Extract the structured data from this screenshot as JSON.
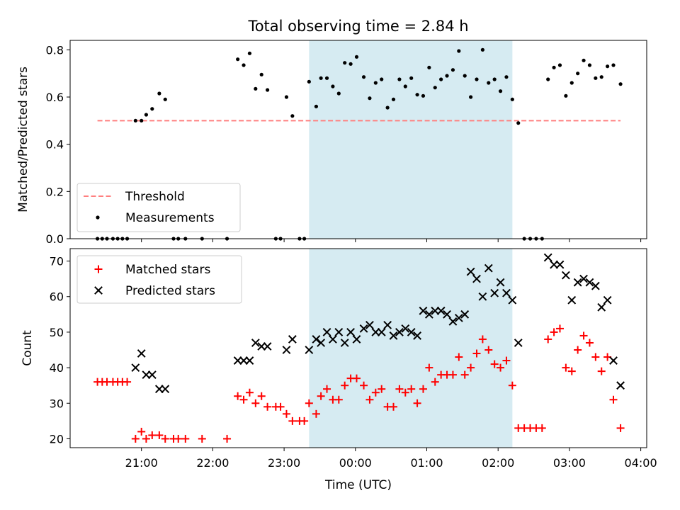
{
  "figure": {
    "title": "Total observing time = 2.84 h",
    "xlabel": "Time (UTC)"
  },
  "chart_data": [
    {
      "type": "scatter",
      "ylabel": "Matched/Predicted stars",
      "ylim": [
        0,
        0.84
      ],
      "yticks": [
        "0.0",
        "0.2",
        "0.4",
        "0.6",
        "0.8"
      ],
      "grid": false,
      "legend_position": "lower-left",
      "shaded_interval": [
        "23:21",
        "02:12"
      ],
      "threshold": {
        "name": "Threshold",
        "value": 0.5,
        "x_range": [
          "20:23",
          "03:43"
        ],
        "color": "#ff7f7f",
        "style": "dashed"
      },
      "series": [
        {
          "name": "Measurements",
          "marker": "dot",
          "color": "#000000",
          "points": [
            [
              "20:23",
              0.0
            ],
            [
              "20:27",
              0.0
            ],
            [
              "20:31",
              0.0
            ],
            [
              "20:36",
              0.0
            ],
            [
              "20:40",
              0.0
            ],
            [
              "20:44",
              0.0
            ],
            [
              "20:48",
              0.0
            ],
            [
              "20:55",
              0.5
            ],
            [
              "21:00",
              0.5
            ],
            [
              "21:04",
              0.525
            ],
            [
              "21:09",
              0.55
            ],
            [
              "21:15",
              0.615
            ],
            [
              "21:20",
              0.59
            ],
            [
              "21:27",
              0.0
            ],
            [
              "21:31",
              0.0
            ],
            [
              "21:37",
              0.0
            ],
            [
              "21:51",
              0.0
            ],
            [
              "22:12",
              0.0
            ],
            [
              "22:21",
              0.76
            ],
            [
              "22:26",
              0.735
            ],
            [
              "22:31",
              0.785
            ],
            [
              "22:36",
              0.635
            ],
            [
              "22:41",
              0.695
            ],
            [
              "22:46",
              0.63
            ],
            [
              "22:53",
              0.0
            ],
            [
              "22:57",
              0.0
            ],
            [
              "23:02",
              0.6
            ],
            [
              "23:07",
              0.52
            ],
            [
              "23:13",
              0.0
            ],
            [
              "23:17",
              0.0
            ],
            [
              "23:21",
              0.665
            ],
            [
              "23:27",
              0.56
            ],
            [
              "23:31",
              0.68
            ],
            [
              "23:36",
              0.68
            ],
            [
              "23:41",
              0.645
            ],
            [
              "23:46",
              0.615
            ],
            [
              "23:51",
              0.745
            ],
            [
              "23:56",
              0.74
            ],
            [
              "00:01",
              0.77
            ],
            [
              "00:07",
              0.685
            ],
            [
              "00:12",
              0.595
            ],
            [
              "00:17",
              0.66
            ],
            [
              "00:22",
              0.675
            ],
            [
              "00:27",
              0.555
            ],
            [
              "00:32",
              0.59
            ],
            [
              "00:37",
              0.675
            ],
            [
              "00:42",
              0.645
            ],
            [
              "00:47",
              0.68
            ],
            [
              "00:52",
              0.61
            ],
            [
              "00:57",
              0.605
            ],
            [
              "01:02",
              0.725
            ],
            [
              "01:07",
              0.64
            ],
            [
              "01:12",
              0.675
            ],
            [
              "01:17",
              0.69
            ],
            [
              "01:22",
              0.715
            ],
            [
              "01:27",
              0.795
            ],
            [
              "01:32",
              0.69
            ],
            [
              "01:37",
              0.6
            ],
            [
              "01:42",
              0.675
            ],
            [
              "01:47",
              0.8
            ],
            [
              "01:52",
              0.66
            ],
            [
              "01:57",
              0.675
            ],
            [
              "02:02",
              0.625
            ],
            [
              "02:07",
              0.685
            ],
            [
              "02:12",
              0.59
            ],
            [
              "02:17",
              0.49
            ],
            [
              "02:22",
              0.0
            ],
            [
              "02:27",
              0.0
            ],
            [
              "02:32",
              0.0
            ],
            [
              "02:37",
              0.0
            ],
            [
              "02:42",
              0.675
            ],
            [
              "02:47",
              0.725
            ],
            [
              "02:52",
              0.735
            ],
            [
              "02:57",
              0.605
            ],
            [
              "03:02",
              0.66
            ],
            [
              "03:07",
              0.7
            ],
            [
              "03:12",
              0.755
            ],
            [
              "03:17",
              0.735
            ],
            [
              "03:22",
              0.68
            ],
            [
              "03:27",
              0.685
            ],
            [
              "03:32",
              0.73
            ],
            [
              "03:37",
              0.735
            ],
            [
              "03:43",
              0.655
            ]
          ]
        }
      ]
    },
    {
      "type": "scatter",
      "ylabel": "Count",
      "ylim": [
        17.5,
        73.5
      ],
      "yticks": [
        "20",
        "30",
        "40",
        "50",
        "60",
        "70"
      ],
      "xticks": [
        "21:00",
        "22:00",
        "23:00",
        "00:00",
        "01:00",
        "02:00",
        "03:00",
        "04:00"
      ],
      "grid": false,
      "legend_position": "upper-left",
      "shaded_interval": [
        "23:21",
        "02:12"
      ],
      "series": [
        {
          "name": "Matched stars",
          "marker": "plus",
          "color": "#ff0000",
          "points": [
            [
              "20:23",
              36
            ],
            [
              "20:27",
              36
            ],
            [
              "20:31",
              36
            ],
            [
              "20:36",
              36
            ],
            [
              "20:40",
              36
            ],
            [
              "20:44",
              36
            ],
            [
              "20:48",
              36
            ],
            [
              "20:55",
              20
            ],
            [
              "21:00",
              22
            ],
            [
              "21:04",
              20
            ],
            [
              "21:09",
              21
            ],
            [
              "21:15",
              21
            ],
            [
              "21:20",
              20
            ],
            [
              "21:27",
              20
            ],
            [
              "21:31",
              20
            ],
            [
              "21:37",
              20
            ],
            [
              "21:51",
              20
            ],
            [
              "22:12",
              20
            ],
            [
              "22:21",
              32
            ],
            [
              "22:26",
              31
            ],
            [
              "22:31",
              33
            ],
            [
              "22:36",
              30
            ],
            [
              "22:41",
              32
            ],
            [
              "22:46",
              29
            ],
            [
              "22:53",
              29
            ],
            [
              "22:57",
              29
            ],
            [
              "23:02",
              27
            ],
            [
              "23:07",
              25
            ],
            [
              "23:13",
              25
            ],
            [
              "23:17",
              25
            ],
            [
              "23:21",
              30
            ],
            [
              "23:27",
              27
            ],
            [
              "23:31",
              32
            ],
            [
              "23:36",
              34
            ],
            [
              "23:41",
              31
            ],
            [
              "23:46",
              31
            ],
            [
              "23:51",
              35
            ],
            [
              "23:56",
              37
            ],
            [
              "00:01",
              37
            ],
            [
              "00:07",
              35
            ],
            [
              "00:12",
              31
            ],
            [
              "00:17",
              33
            ],
            [
              "00:22",
              34
            ],
            [
              "00:27",
              29
            ],
            [
              "00:32",
              29
            ],
            [
              "00:37",
              34
            ],
            [
              "00:42",
              33
            ],
            [
              "00:47",
              34
            ],
            [
              "00:52",
              30
            ],
            [
              "00:57",
              34
            ],
            [
              "01:02",
              40
            ],
            [
              "01:07",
              36
            ],
            [
              "01:12",
              38
            ],
            [
              "01:17",
              38
            ],
            [
              "01:22",
              38
            ],
            [
              "01:27",
              43
            ],
            [
              "01:32",
              38
            ],
            [
              "01:37",
              40
            ],
            [
              "01:42",
              44
            ],
            [
              "01:47",
              48
            ],
            [
              "01:52",
              45
            ],
            [
              "01:57",
              41
            ],
            [
              "02:02",
              40
            ],
            [
              "02:07",
              42
            ],
            [
              "02:12",
              35
            ],
            [
              "02:17",
              23
            ],
            [
              "02:22",
              23
            ],
            [
              "02:27",
              23
            ],
            [
              "02:32",
              23
            ],
            [
              "02:37",
              23
            ],
            [
              "02:42",
              48
            ],
            [
              "02:47",
              50
            ],
            [
              "02:52",
              51
            ],
            [
              "02:57",
              40
            ],
            [
              "03:02",
              39
            ],
            [
              "03:07",
              45
            ],
            [
              "03:12",
              49
            ],
            [
              "03:17",
              47
            ],
            [
              "03:22",
              43
            ],
            [
              "03:27",
              39
            ],
            [
              "03:32",
              43
            ],
            [
              "03:37",
              31
            ],
            [
              "03:43",
              23
            ]
          ]
        },
        {
          "name": "Predicted stars",
          "marker": "x",
          "color": "#000000",
          "points": [
            [
              "20:55",
              40
            ],
            [
              "21:00",
              44
            ],
            [
              "21:04",
              38
            ],
            [
              "21:09",
              38
            ],
            [
              "21:15",
              34
            ],
            [
              "21:20",
              34
            ],
            [
              "22:21",
              42
            ],
            [
              "22:26",
              42
            ],
            [
              "22:31",
              42
            ],
            [
              "22:36",
              47
            ],
            [
              "22:41",
              46
            ],
            [
              "22:46",
              46
            ],
            [
              "23:02",
              45
            ],
            [
              "23:07",
              48
            ],
            [
              "23:21",
              45
            ],
            [
              "23:27",
              48
            ],
            [
              "23:31",
              47
            ],
            [
              "23:36",
              50
            ],
            [
              "23:41",
              48
            ],
            [
              "23:46",
              50
            ],
            [
              "23:51",
              47
            ],
            [
              "23:56",
              50
            ],
            [
              "00:01",
              48
            ],
            [
              "00:07",
              51
            ],
            [
              "00:12",
              52
            ],
            [
              "00:17",
              50
            ],
            [
              "00:22",
              50
            ],
            [
              "00:27",
              52
            ],
            [
              "00:32",
              49
            ],
            [
              "00:37",
              50
            ],
            [
              "00:42",
              51
            ],
            [
              "00:47",
              50
            ],
            [
              "00:52",
              49
            ],
            [
              "00:57",
              56
            ],
            [
              "01:02",
              55
            ],
            [
              "01:07",
              56
            ],
            [
              "01:12",
              56
            ],
            [
              "01:17",
              55
            ],
            [
              "01:22",
              53
            ],
            [
              "01:27",
              54
            ],
            [
              "01:32",
              55
            ],
            [
              "01:37",
              67
            ],
            [
              "01:42",
              65
            ],
            [
              "01:47",
              60
            ],
            [
              "01:52",
              68
            ],
            [
              "01:57",
              61
            ],
            [
              "02:02",
              64
            ],
            [
              "02:07",
              61
            ],
            [
              "02:12",
              59
            ],
            [
              "02:17",
              47
            ],
            [
              "02:42",
              71
            ],
            [
              "02:47",
              69
            ],
            [
              "02:52",
              69
            ],
            [
              "02:57",
              66
            ],
            [
              "03:02",
              59
            ],
            [
              "03:07",
              64
            ],
            [
              "03:12",
              65
            ],
            [
              "03:17",
              64
            ],
            [
              "03:22",
              63
            ],
            [
              "03:27",
              57
            ],
            [
              "03:32",
              59
            ],
            [
              "03:37",
              42
            ],
            [
              "03:43",
              35
            ]
          ]
        }
      ]
    }
  ]
}
